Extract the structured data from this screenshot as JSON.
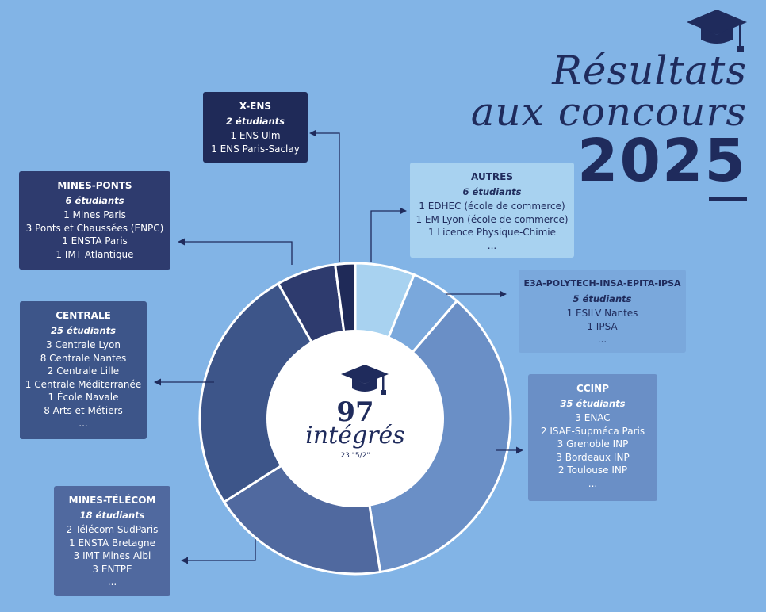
{
  "header": {
    "title_line1": "Résultats",
    "title_line2": "aux concours",
    "year": "2025"
  },
  "center": {
    "count": "97",
    "label": "intégrés",
    "sub": "23 \"5/2\""
  },
  "boxes": {
    "xens": {
      "title": "X-ENS",
      "count": "2 étudiants",
      "lines": [
        "1 ENS Ulm",
        "1 ENS Paris-Saclay"
      ]
    },
    "mines_ponts": {
      "title": "MINES-PONTS",
      "count": "6 étudiants",
      "lines": [
        "1 Mines Paris",
        "3 Ponts et Chaussées (ENPC)",
        "1 ENSTA Paris",
        "1 IMT Atlantique"
      ]
    },
    "centrale": {
      "title": "CENTRALE",
      "count": "25 étudiants",
      "lines": [
        "3 Centrale Lyon",
        "8 Centrale Nantes",
        "2 Centrale Lille",
        "1 Centrale Méditerranée",
        "1 École Navale",
        "8 Arts et Métiers",
        "..."
      ]
    },
    "mines_telecom": {
      "title": "MINES-TÉLÉCOM",
      "count": "18 étudiants",
      "lines": [
        "2 Télécom SudParis",
        "1 ENSTA Bretagne",
        "3 IMT Mines Albi",
        "3 ENTPE",
        "..."
      ]
    },
    "autres": {
      "title": "AUTRES",
      "count": "6 étudiants",
      "lines": [
        "1 EDHEC (école de commerce)",
        "1 EM Lyon (école de commerce)",
        "1 Licence Physique-Chimie",
        "..."
      ]
    },
    "e3a": {
      "title": "E3A-POLYTECH-INSA-EPITA-IPSA",
      "count": "5 étudiants",
      "lines": [
        "1 ESILV Nantes",
        "1 IPSA",
        "..."
      ]
    },
    "ccinp": {
      "title": "CCINP",
      "count": "35 étudiants",
      "lines": [
        "3 ENAC",
        "2 ISAE-Supméca Paris",
        "3 Grenoble INP",
        "3 Bordeaux INP",
        "2 Toulouse INP",
        "..."
      ]
    }
  },
  "chart_data": {
    "type": "pie",
    "donut": true,
    "title": "",
    "categories": [
      "AUTRES",
      "E3A-POLYTECH-INSA-EPITA-IPSA",
      "CCINP",
      "MINES-TÉLÉCOM",
      "CENTRALE",
      "MINES-PONTS",
      "X-ENS"
    ],
    "values": [
      6,
      5,
      35,
      18,
      25,
      6,
      2
    ],
    "total": 97,
    "colors": [
      "#a8d2f0",
      "#7aa8dc",
      "#6a8fc6",
      "#50699f",
      "#3d5589",
      "#2e3b6e",
      "#1f2a58"
    ]
  },
  "colors": {
    "background": "#82b4e6",
    "navy": "#1f2b5c"
  },
  "icons": [
    "graduation-cap-icon"
  ]
}
